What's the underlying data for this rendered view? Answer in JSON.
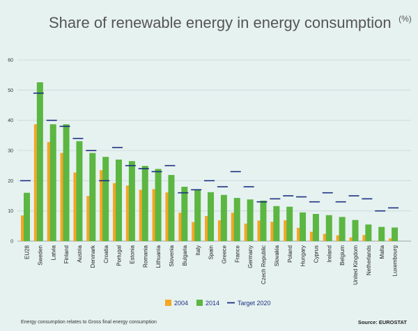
{
  "chart_data": {
    "type": "bar",
    "title": "Share of renewable energy in energy consumption",
    "title_unit": "(%)",
    "ylim": [
      0,
      60
    ],
    "yticks": [
      "0",
      "10",
      "20",
      "30",
      "40",
      "50",
      "60"
    ],
    "grid": true,
    "legend_position": "bottom-center",
    "categories": [
      "EU28",
      "Sweden",
      "Latvia",
      "Finland",
      "Austria",
      "Denmark",
      "Croatia",
      "Portugal",
      "Estonia",
      "Romania",
      "Lithuania",
      "Slovenia",
      "Bulgaria",
      "Italy",
      "Spain",
      "Greece",
      "France",
      "Germany",
      "Czech Republic",
      "Slovakia",
      "Poland",
      "Hungary",
      "Cyprus",
      "Ireland",
      "Belgium",
      "United Kingdom",
      "Netherlands",
      "Malta",
      "Luxembourg"
    ],
    "series": [
      {
        "name": "2004",
        "type": "bar",
        "color": "#f5a623",
        "values": [
          8.5,
          38.7,
          32.8,
          29.2,
          22.7,
          14.9,
          23.5,
          19.2,
          18.4,
          17.0,
          17.2,
          16.1,
          9.4,
          6.3,
          8.3,
          6.9,
          9.4,
          5.8,
          6.8,
          6.4,
          6.9,
          4.4,
          3.1,
          2.4,
          1.9,
          1.2,
          2.0,
          0.1,
          0.9
        ]
      },
      {
        "name": "2014",
        "type": "bar",
        "color": "#5cb642",
        "values": [
          16.0,
          52.6,
          38.7,
          38.7,
          33.1,
          29.2,
          27.9,
          27.0,
          26.5,
          24.9,
          23.9,
          21.9,
          18.0,
          17.1,
          16.2,
          15.3,
          14.3,
          13.8,
          13.4,
          11.6,
          11.4,
          9.5,
          9.0,
          8.6,
          8.0,
          7.0,
          5.5,
          4.7,
          4.5
        ]
      },
      {
        "name": "Target 2020",
        "type": "marker",
        "color": "#1b2f80",
        "values": [
          20,
          49,
          40,
          38,
          34,
          30,
          20,
          31,
          25,
          24,
          23,
          25,
          16,
          17,
          20,
          18,
          23,
          18,
          13,
          14,
          15,
          14.65,
          13,
          16,
          13,
          15,
          14,
          10,
          11
        ]
      }
    ]
  },
  "footnote": "Energy consumption relates to Gross final energy consumption",
  "source": "Source: EUROSTAT"
}
